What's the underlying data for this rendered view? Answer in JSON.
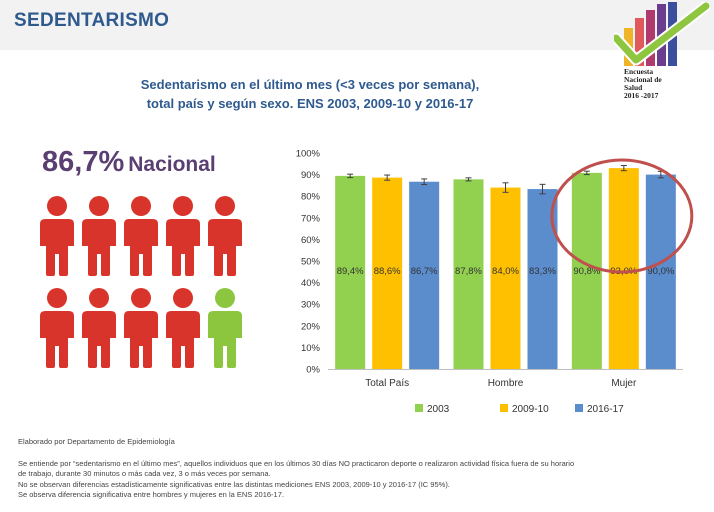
{
  "header": {
    "title": "SEDENTARISMO"
  },
  "logo": {
    "lines": [
      "Encuesta",
      "Nacional de",
      "Salud",
      "2016 -2017"
    ],
    "bar_colors": [
      "#f0b429",
      "#e2595c",
      "#b03a6e",
      "#6a3d8f",
      "#3b4f9e"
    ],
    "check_color": "#8ec63f"
  },
  "chart_title": {
    "line1": "Sedentarismo en el último mes (<3 veces por semana),",
    "line2": "total país y según sexo. ENS 2003, 2009-10 y 2016-17"
  },
  "national": {
    "value": "86,7%",
    "label": "Nacional"
  },
  "people_icons": {
    "total": 10,
    "highlighted": 9,
    "highlight_color": "#d9342b",
    "other_color": "#8cc63f"
  },
  "chart_data": {
    "type": "bar",
    "categories": [
      "Total País",
      "Hombre",
      "Mujer"
    ],
    "series": [
      {
        "name": "2003",
        "color": "#92d050",
        "values": [
          89.4,
          87.8,
          90.8
        ],
        "labels": [
          "89,4%",
          "87,8%",
          "90,8%"
        ],
        "err": [
          0.8,
          0.7,
          0.8
        ]
      },
      {
        "name": "2009-10",
        "color": "#ffc000",
        "values": [
          88.6,
          84.0,
          93.0
        ],
        "labels": [
          "88,6%",
          "84,0%",
          "93,0%"
        ],
        "err": [
          1.2,
          2.2,
          1.2
        ]
      },
      {
        "name": "2016-17",
        "color": "#5b8ccc",
        "values": [
          86.7,
          83.3,
          90.0
        ],
        "labels": [
          "86,7%",
          "83,3%",
          "90,0%"
        ],
        "err": [
          1.3,
          2.2,
          1.5
        ]
      }
    ],
    "y_ticks": [
      "0%",
      "10%",
      "20%",
      "30%",
      "40%",
      "50%",
      "60%",
      "70%",
      "80%",
      "90%",
      "100%"
    ],
    "ylim": [
      0,
      100
    ],
    "grid": false,
    "legend_position": "bottom",
    "highlight_category": "Mujer",
    "highlight_color": "#c0504d"
  },
  "footer": {
    "credit": "Elaborado por Departamento de Epidemiología",
    "notes": [
      "Se entiende por “sedentarismo en el último mes”, aquellos individuos que en los últimos 30 días NO practicaron deporte o realizaron actividad física fuera de su horario",
      "de trabajo, durante 30 minutos o más cada vez, 3 o más veces por semana.",
      "No se observan diferencias estadísticamente significativas entre las distintas mediciones ENS 2003, 2009-10 y 2016-17  (IC 95%).",
      "Se observa diferencia significativa entre hombres y mujeres en la ENS 2016-17."
    ]
  }
}
